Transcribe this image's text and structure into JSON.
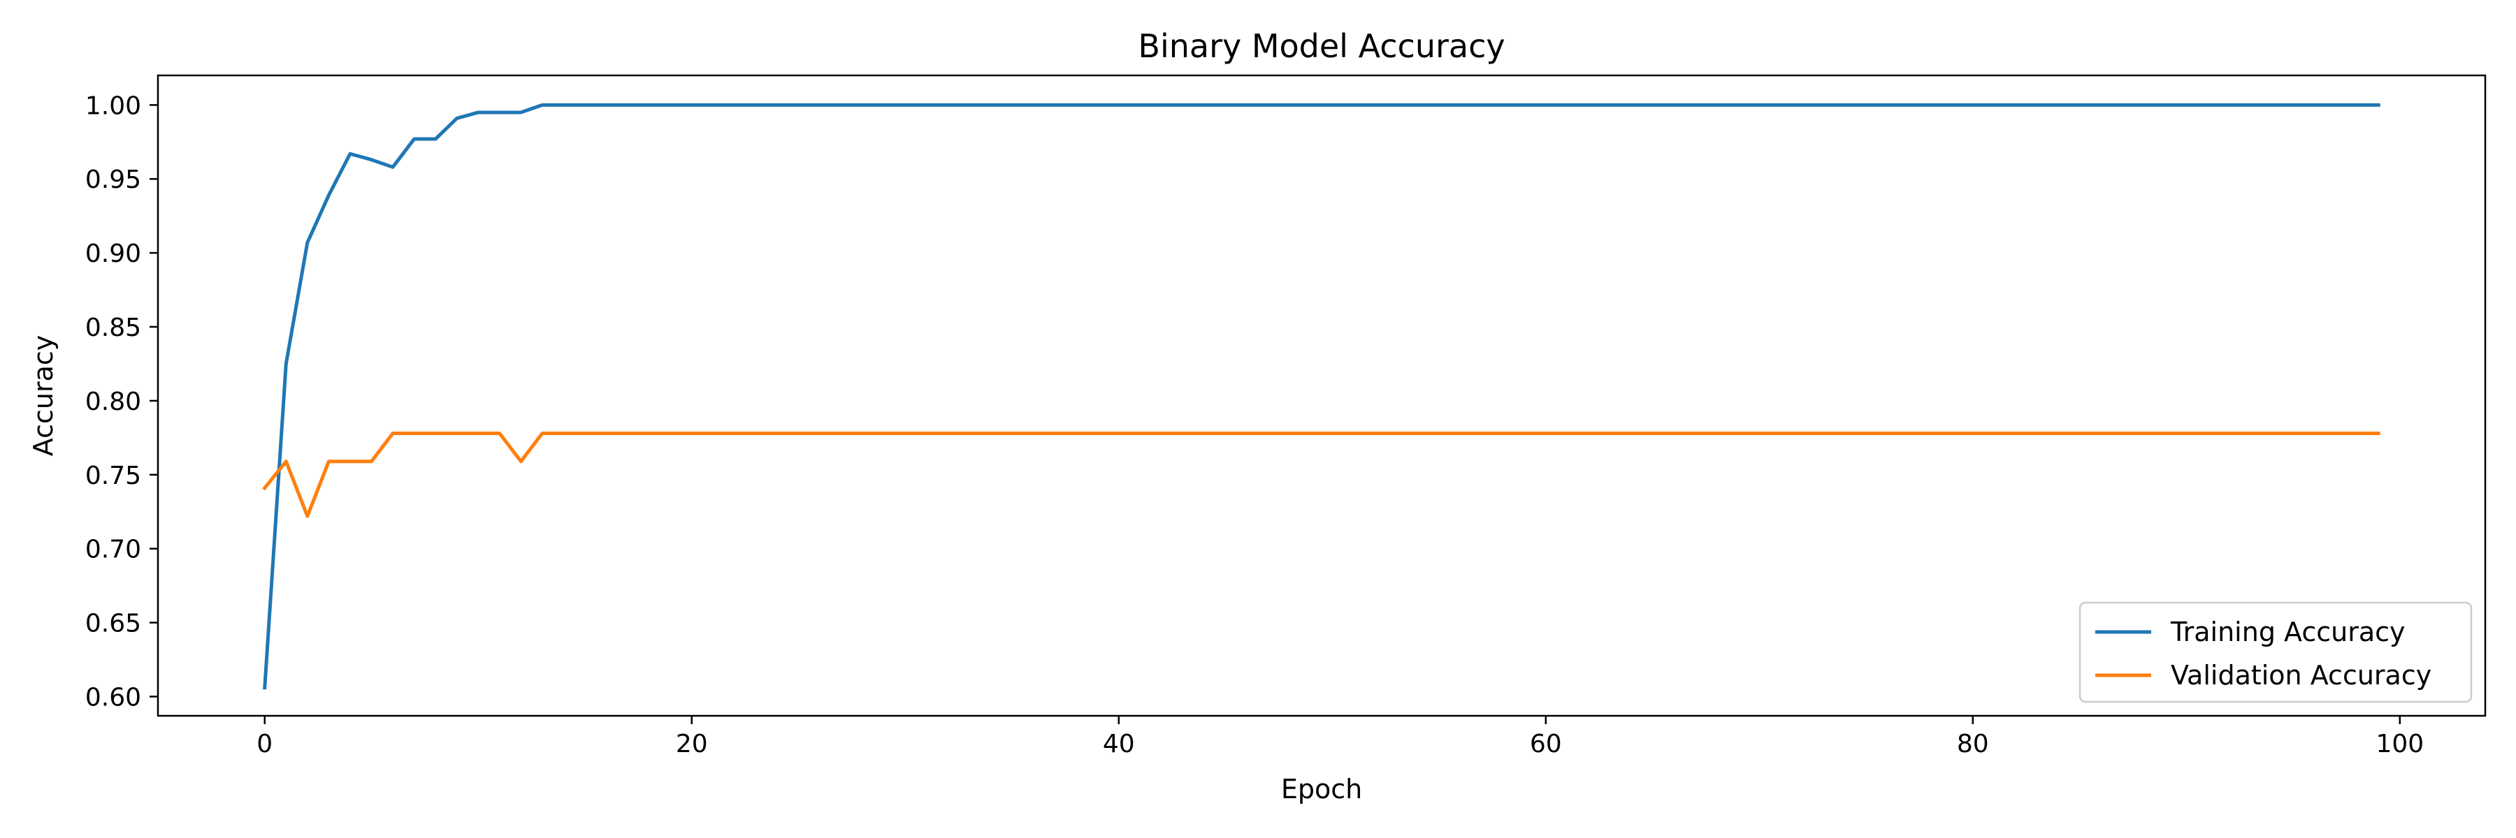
{
  "chart_data": {
    "type": "line",
    "title": "Binary Model Accuracy",
    "xlabel": "Epoch",
    "ylabel": "Accuracy",
    "xlim": [
      -5,
      104
    ],
    "ylim": [
      0.587,
      1.02
    ],
    "xticks": [
      0,
      20,
      40,
      60,
      80,
      100
    ],
    "xtick_labels": [
      "0",
      "20",
      "40",
      "60",
      "80",
      "100"
    ],
    "yticks": [
      0.6,
      0.65,
      0.7,
      0.75,
      0.8,
      0.85,
      0.9,
      0.95,
      1.0
    ],
    "ytick_labels": [
      "0.60",
      "0.65",
      "0.70",
      "0.75",
      "0.80",
      "0.85",
      "0.90",
      "0.95",
      "1.00"
    ],
    "grid": false,
    "legend_position": "lower-right",
    "x": [
      0,
      1,
      2,
      3,
      4,
      5,
      6,
      7,
      8,
      9,
      10,
      11,
      12,
      13,
      14,
      15,
      16,
      17,
      18,
      19,
      20,
      21,
      22,
      23,
      24,
      25,
      26,
      27,
      28,
      29,
      30,
      31,
      32,
      33,
      34,
      35,
      36,
      37,
      38,
      39,
      40,
      41,
      42,
      43,
      44,
      45,
      46,
      47,
      48,
      49,
      50,
      51,
      52,
      53,
      54,
      55,
      56,
      57,
      58,
      59,
      60,
      61,
      62,
      63,
      64,
      65,
      66,
      67,
      68,
      69,
      70,
      71,
      72,
      73,
      74,
      75,
      76,
      77,
      78,
      79,
      80,
      81,
      82,
      83,
      84,
      85,
      86,
      87,
      88,
      89,
      90,
      91,
      92,
      93,
      94,
      95,
      96,
      97,
      98,
      99
    ],
    "series": [
      {
        "name": "Training Accuracy",
        "color": "#1f77b4",
        "values": [
          0.606,
          0.825,
          0.907,
          0.939,
          0.967,
          0.963,
          0.958,
          0.977,
          0.977,
          0.991,
          0.995,
          0.995,
          0.995,
          1.0,
          1.0,
          1.0,
          1.0,
          1.0,
          1.0,
          1.0,
          1.0,
          1.0,
          1.0,
          1.0,
          1.0,
          1.0,
          1.0,
          1.0,
          1.0,
          1.0,
          1.0,
          1.0,
          1.0,
          1.0,
          1.0,
          1.0,
          1.0,
          1.0,
          1.0,
          1.0,
          1.0,
          1.0,
          1.0,
          1.0,
          1.0,
          1.0,
          1.0,
          1.0,
          1.0,
          1.0,
          1.0,
          1.0,
          1.0,
          1.0,
          1.0,
          1.0,
          1.0,
          1.0,
          1.0,
          1.0,
          1.0,
          1.0,
          1.0,
          1.0,
          1.0,
          1.0,
          1.0,
          1.0,
          1.0,
          1.0,
          1.0,
          1.0,
          1.0,
          1.0,
          1.0,
          1.0,
          1.0,
          1.0,
          1.0,
          1.0,
          1.0,
          1.0,
          1.0,
          1.0,
          1.0,
          1.0,
          1.0,
          1.0,
          1.0,
          1.0,
          1.0,
          1.0,
          1.0,
          1.0,
          1.0,
          1.0,
          1.0,
          1.0,
          1.0,
          1.0
        ]
      },
      {
        "name": "Validation Accuracy",
        "color": "#ff7f0e",
        "values": [
          0.741,
          0.759,
          0.722,
          0.759,
          0.759,
          0.759,
          0.778,
          0.778,
          0.778,
          0.778,
          0.778,
          0.778,
          0.759,
          0.778,
          0.778,
          0.778,
          0.778,
          0.778,
          0.778,
          0.778,
          0.778,
          0.778,
          0.778,
          0.778,
          0.778,
          0.778,
          0.778,
          0.778,
          0.778,
          0.778,
          0.778,
          0.778,
          0.778,
          0.778,
          0.778,
          0.778,
          0.778,
          0.778,
          0.778,
          0.778,
          0.778,
          0.778,
          0.778,
          0.778,
          0.778,
          0.778,
          0.778,
          0.778,
          0.778,
          0.778,
          0.778,
          0.778,
          0.778,
          0.778,
          0.778,
          0.778,
          0.778,
          0.778,
          0.778,
          0.778,
          0.778,
          0.778,
          0.778,
          0.778,
          0.778,
          0.778,
          0.778,
          0.778,
          0.778,
          0.778,
          0.778,
          0.778,
          0.778,
          0.778,
          0.778,
          0.778,
          0.778,
          0.778,
          0.778,
          0.778,
          0.778,
          0.778,
          0.778,
          0.778,
          0.778,
          0.778,
          0.778,
          0.778,
          0.778,
          0.778,
          0.778,
          0.778,
          0.778,
          0.778,
          0.778,
          0.778,
          0.778,
          0.778,
          0.778,
          0.778
        ]
      }
    ]
  }
}
